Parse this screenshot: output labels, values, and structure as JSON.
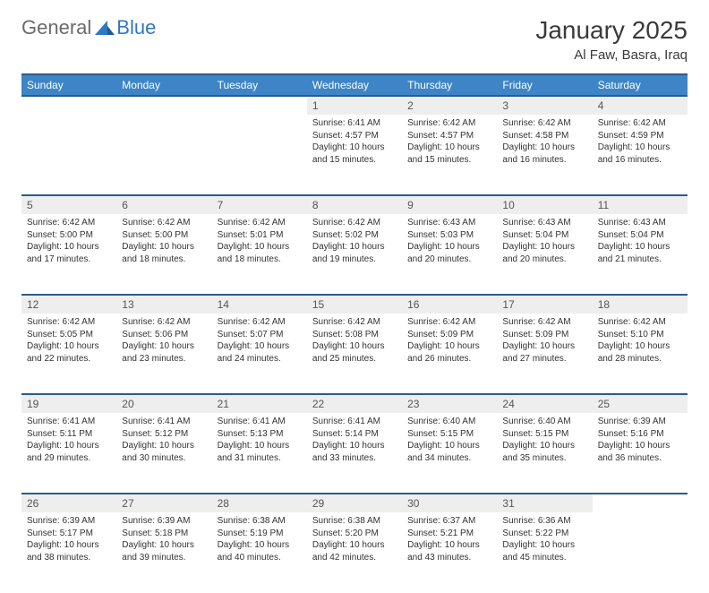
{
  "brand": {
    "general": "General",
    "blue": "Blue"
  },
  "title": "January 2025",
  "location": "Al Faw, Basra, Iraq",
  "colors": {
    "header_bg": "#3d85c6",
    "header_border": "#2a5d8a",
    "daynum_bg": "#eeeeee",
    "text": "#333333",
    "brand_gray": "#6b6b6b",
    "brand_blue": "#2f78c2"
  },
  "day_headers": [
    "Sunday",
    "Monday",
    "Tuesday",
    "Wednesday",
    "Thursday",
    "Friday",
    "Saturday"
  ],
  "weeks": [
    [
      null,
      null,
      null,
      {
        "d": "1",
        "sr": "6:41 AM",
        "ss": "4:57 PM",
        "dl": "10 hours and 15 minutes."
      },
      {
        "d": "2",
        "sr": "6:42 AM",
        "ss": "4:57 PM",
        "dl": "10 hours and 15 minutes."
      },
      {
        "d": "3",
        "sr": "6:42 AM",
        "ss": "4:58 PM",
        "dl": "10 hours and 16 minutes."
      },
      {
        "d": "4",
        "sr": "6:42 AM",
        "ss": "4:59 PM",
        "dl": "10 hours and 16 minutes."
      }
    ],
    [
      {
        "d": "5",
        "sr": "6:42 AM",
        "ss": "5:00 PM",
        "dl": "10 hours and 17 minutes."
      },
      {
        "d": "6",
        "sr": "6:42 AM",
        "ss": "5:00 PM",
        "dl": "10 hours and 18 minutes."
      },
      {
        "d": "7",
        "sr": "6:42 AM",
        "ss": "5:01 PM",
        "dl": "10 hours and 18 minutes."
      },
      {
        "d": "8",
        "sr": "6:42 AM",
        "ss": "5:02 PM",
        "dl": "10 hours and 19 minutes."
      },
      {
        "d": "9",
        "sr": "6:43 AM",
        "ss": "5:03 PM",
        "dl": "10 hours and 20 minutes."
      },
      {
        "d": "10",
        "sr": "6:43 AM",
        "ss": "5:04 PM",
        "dl": "10 hours and 20 minutes."
      },
      {
        "d": "11",
        "sr": "6:43 AM",
        "ss": "5:04 PM",
        "dl": "10 hours and 21 minutes."
      }
    ],
    [
      {
        "d": "12",
        "sr": "6:42 AM",
        "ss": "5:05 PM",
        "dl": "10 hours and 22 minutes."
      },
      {
        "d": "13",
        "sr": "6:42 AM",
        "ss": "5:06 PM",
        "dl": "10 hours and 23 minutes."
      },
      {
        "d": "14",
        "sr": "6:42 AM",
        "ss": "5:07 PM",
        "dl": "10 hours and 24 minutes."
      },
      {
        "d": "15",
        "sr": "6:42 AM",
        "ss": "5:08 PM",
        "dl": "10 hours and 25 minutes."
      },
      {
        "d": "16",
        "sr": "6:42 AM",
        "ss": "5:09 PM",
        "dl": "10 hours and 26 minutes."
      },
      {
        "d": "17",
        "sr": "6:42 AM",
        "ss": "5:09 PM",
        "dl": "10 hours and 27 minutes."
      },
      {
        "d": "18",
        "sr": "6:42 AM",
        "ss": "5:10 PM",
        "dl": "10 hours and 28 minutes."
      }
    ],
    [
      {
        "d": "19",
        "sr": "6:41 AM",
        "ss": "5:11 PM",
        "dl": "10 hours and 29 minutes."
      },
      {
        "d": "20",
        "sr": "6:41 AM",
        "ss": "5:12 PM",
        "dl": "10 hours and 30 minutes."
      },
      {
        "d": "21",
        "sr": "6:41 AM",
        "ss": "5:13 PM",
        "dl": "10 hours and 31 minutes."
      },
      {
        "d": "22",
        "sr": "6:41 AM",
        "ss": "5:14 PM",
        "dl": "10 hours and 33 minutes."
      },
      {
        "d": "23",
        "sr": "6:40 AM",
        "ss": "5:15 PM",
        "dl": "10 hours and 34 minutes."
      },
      {
        "d": "24",
        "sr": "6:40 AM",
        "ss": "5:15 PM",
        "dl": "10 hours and 35 minutes."
      },
      {
        "d": "25",
        "sr": "6:39 AM",
        "ss": "5:16 PM",
        "dl": "10 hours and 36 minutes."
      }
    ],
    [
      {
        "d": "26",
        "sr": "6:39 AM",
        "ss": "5:17 PM",
        "dl": "10 hours and 38 minutes."
      },
      {
        "d": "27",
        "sr": "6:39 AM",
        "ss": "5:18 PM",
        "dl": "10 hours and 39 minutes."
      },
      {
        "d": "28",
        "sr": "6:38 AM",
        "ss": "5:19 PM",
        "dl": "10 hours and 40 minutes."
      },
      {
        "d": "29",
        "sr": "6:38 AM",
        "ss": "5:20 PM",
        "dl": "10 hours and 42 minutes."
      },
      {
        "d": "30",
        "sr": "6:37 AM",
        "ss": "5:21 PM",
        "dl": "10 hours and 43 minutes."
      },
      {
        "d": "31",
        "sr": "6:36 AM",
        "ss": "5:22 PM",
        "dl": "10 hours and 45 minutes."
      },
      null
    ]
  ],
  "labels": {
    "sunrise": "Sunrise:",
    "sunset": "Sunset:",
    "daylight": "Daylight:"
  }
}
